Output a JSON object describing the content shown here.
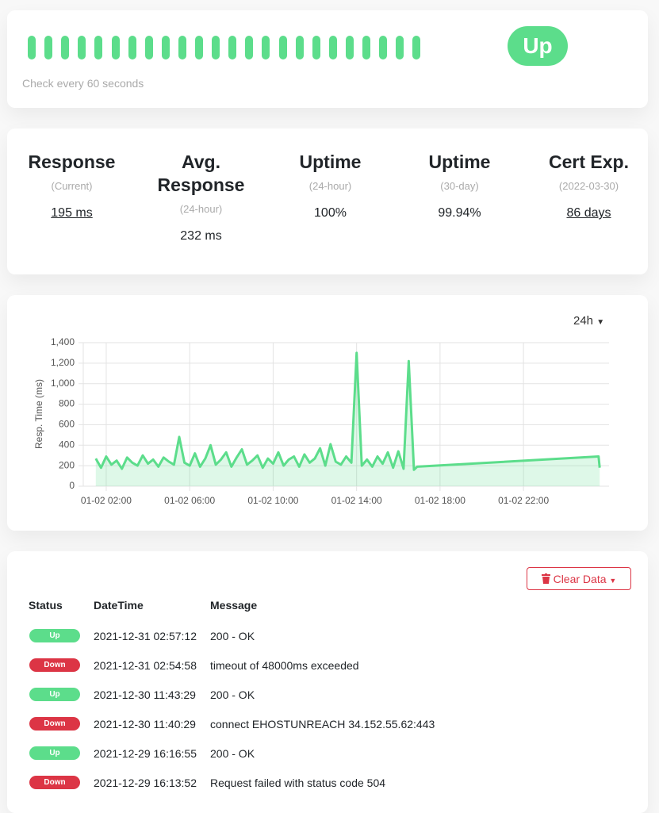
{
  "monitor": {
    "status": "Up",
    "check_interval": "Check every 60 seconds"
  },
  "stats": [
    {
      "title": "Response",
      "subtitle": "(Current)",
      "value": "195 ms"
    },
    {
      "title": "Avg. Response",
      "subtitle": "(24-hour)",
      "value": "232 ms"
    },
    {
      "title": "Uptime",
      "subtitle": "(24-hour)",
      "value": "100%"
    },
    {
      "title": "Uptime",
      "subtitle": "(30-day)",
      "value": "99.94%"
    },
    {
      "title": "Cert Exp.",
      "subtitle": "(2022-03-30)",
      "value": "86 days"
    }
  ],
  "chart_data": {
    "type": "line",
    "range_selector": "24h",
    "y_label": "Resp. Time (ms)",
    "color": "#5cdd8b",
    "grid": true,
    "x": [
      1.5,
      1.75,
      2,
      2.25,
      2.5,
      2.75,
      3,
      3.25,
      3.5,
      3.75,
      4,
      4.25,
      4.5,
      4.75,
      5,
      5.25,
      5.5,
      5.75,
      6,
      6.25,
      6.5,
      6.75,
      7,
      7.25,
      7.5,
      7.75,
      8,
      8.25,
      8.5,
      8.75,
      9,
      9.25,
      9.5,
      9.75,
      10,
      10.25,
      10.5,
      10.75,
      11,
      11.25,
      11.5,
      11.75,
      12,
      12.25,
      12.5,
      12.75,
      13,
      13.25,
      13.5,
      13.75,
      14,
      14.25,
      14.5,
      14.75,
      15,
      15.25,
      15.5,
      15.75,
      16,
      16.25,
      16.5,
      16.75,
      16.9,
      25.6,
      25.65
    ],
    "values": [
      270,
      180,
      290,
      210,
      250,
      170,
      280,
      230,
      200,
      300,
      220,
      260,
      190,
      280,
      240,
      210,
      480,
      230,
      200,
      320,
      190,
      270,
      400,
      210,
      260,
      330,
      190,
      280,
      360,
      210,
      250,
      300,
      180,
      270,
      220,
      330,
      200,
      260,
      290,
      190,
      310,
      230,
      270,
      370,
      200,
      410,
      240,
      210,
      290,
      230,
      1300,
      200,
      260,
      190,
      290,
      220,
      330,
      180,
      340,
      170,
      1220,
      160,
      190,
      290,
      180
    ],
    "xlim": [
      0.9,
      26.1
    ],
    "xticks": [
      {
        "value": 2,
        "label": "01-02 02:00"
      },
      {
        "value": 6,
        "label": "01-02 06:00"
      },
      {
        "value": 10,
        "label": "01-02 10:00"
      },
      {
        "value": 14,
        "label": "01-02 14:00"
      },
      {
        "value": 18,
        "label": "01-02 18:00"
      },
      {
        "value": 22,
        "label": "01-02 22:00"
      }
    ],
    "ylim": [
      0,
      1400
    ],
    "yticks": [
      0,
      200,
      400,
      600,
      800,
      {
        "value": 1000,
        "label": "1,000"
      },
      {
        "value": 1200,
        "label": "1,200"
      },
      {
        "value": 1400,
        "label": "1,400"
      }
    ]
  },
  "events": {
    "clear_button": "Clear Data",
    "columns": [
      "Status",
      "DateTime",
      "Message"
    ],
    "rows": [
      [
        "Up",
        "2021-12-31 02:57:12",
        "200 - OK"
      ],
      [
        "Down",
        "2021-12-31 02:54:58",
        "timeout of 48000ms exceeded"
      ],
      [
        "Up",
        "2021-12-30 11:43:29",
        "200 - OK"
      ],
      [
        "Down",
        "2021-12-30 11:40:29",
        "connect EHOSTUNREACH 34.152.55.62:443"
      ],
      [
        "Up",
        "2021-12-29 16:16:55",
        "200 - OK"
      ],
      [
        "Down",
        "2021-12-29 16:13:52",
        "Request failed with status code 504"
      ]
    ]
  }
}
